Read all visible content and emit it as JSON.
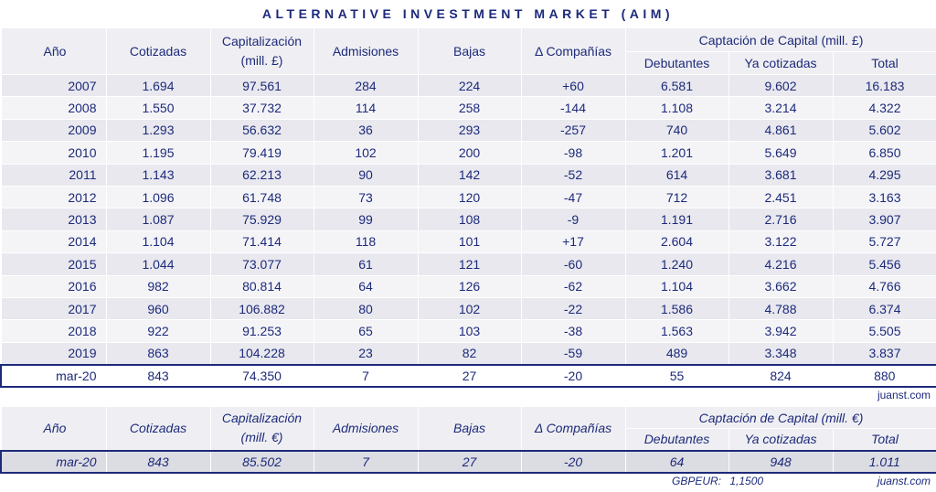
{
  "title": "ALTERNATIVE INVESTMENT MARKET (AIM)",
  "headers": {
    "year": "Año",
    "listed": "Cotizadas",
    "cap_gbp_1": "Capitalización",
    "cap_gbp_2": "(mill. £)",
    "admissions": "Admisiones",
    "delistings": "Bajas",
    "delta": "Δ Compañías",
    "raising_gbp": "Captación de Capital (mill. £)",
    "debut": "Debutantes",
    "already": "Ya cotizadas",
    "total": "Total"
  },
  "rows": [
    {
      "year": "2007",
      "listed": "1.694",
      "cap": "97.561",
      "adm": "284",
      "bajas": "224",
      "delta": "+60",
      "debut": "6.581",
      "already": "9.602",
      "total": "16.183"
    },
    {
      "year": "2008",
      "listed": "1.550",
      "cap": "37.732",
      "adm": "114",
      "bajas": "258",
      "delta": "-144",
      "debut": "1.108",
      "already": "3.214",
      "total": "4.322"
    },
    {
      "year": "2009",
      "listed": "1.293",
      "cap": "56.632",
      "adm": "36",
      "bajas": "293",
      "delta": "-257",
      "debut": "740",
      "already": "4.861",
      "total": "5.602"
    },
    {
      "year": "2010",
      "listed": "1.195",
      "cap": "79.419",
      "adm": "102",
      "bajas": "200",
      "delta": "-98",
      "debut": "1.201",
      "already": "5.649",
      "total": "6.850"
    },
    {
      "year": "2011",
      "listed": "1.143",
      "cap": "62.213",
      "adm": "90",
      "bajas": "142",
      "delta": "-52",
      "debut": "614",
      "already": "3.681",
      "total": "4.295"
    },
    {
      "year": "2012",
      "listed": "1.096",
      "cap": "61.748",
      "adm": "73",
      "bajas": "120",
      "delta": "-47",
      "debut": "712",
      "already": "2.451",
      "total": "3.163"
    },
    {
      "year": "2013",
      "listed": "1.087",
      "cap": "75.929",
      "adm": "99",
      "bajas": "108",
      "delta": "-9",
      "debut": "1.191",
      "already": "2.716",
      "total": "3.907"
    },
    {
      "year": "2014",
      "listed": "1.104",
      "cap": "71.414",
      "adm": "118",
      "bajas": "101",
      "delta": "+17",
      "debut": "2.604",
      "already": "3.122",
      "total": "5.727"
    },
    {
      "year": "2015",
      "listed": "1.044",
      "cap": "73.077",
      "adm": "61",
      "bajas": "121",
      "delta": "-60",
      "debut": "1.240",
      "already": "4.216",
      "total": "5.456"
    },
    {
      "year": "2016",
      "listed": "982",
      "cap": "80.814",
      "adm": "64",
      "bajas": "126",
      "delta": "-62",
      "debut": "1.104",
      "already": "3.662",
      "total": "4.766"
    },
    {
      "year": "2017",
      "listed": "960",
      "cap": "106.882",
      "adm": "80",
      "bajas": "102",
      "delta": "-22",
      "debut": "1.586",
      "already": "4.788",
      "total": "6.374"
    },
    {
      "year": "2018",
      "listed": "922",
      "cap": "91.253",
      "adm": "65",
      "bajas": "103",
      "delta": "-38",
      "debut": "1.563",
      "already": "3.942",
      "total": "5.505"
    },
    {
      "year": "2019",
      "listed": "863",
      "cap": "104.228",
      "adm": "23",
      "bajas": "82",
      "delta": "-59",
      "debut": "489",
      "already": "3.348",
      "total": "3.837"
    }
  ],
  "current": {
    "year": "mar-20",
    "listed": "843",
    "cap": "74.350",
    "adm": "7",
    "bajas": "27",
    "delta": "-20",
    "debut": "55",
    "already": "824",
    "total": "880"
  },
  "watermark": "juanst.com",
  "euro": {
    "headers": {
      "year": "Año",
      "listed": "Cotizadas",
      "cap_1": "Capitalización",
      "cap_2": "(mill. €)",
      "admissions": "Admisiones",
      "delistings": "Bajas",
      "delta": "Δ Compañías",
      "raising": "Captación de Capital (mill. €)",
      "debut": "Debutantes",
      "already": "Ya cotizadas",
      "total": "Total"
    },
    "row": {
      "year": "mar-20",
      "listed": "843",
      "cap": "85.502",
      "adm": "7",
      "bajas": "27",
      "delta": "-20",
      "debut": "64",
      "already": "948",
      "total": "1.011"
    }
  },
  "fx": {
    "label": "GBPEUR:",
    "value": "1,1500"
  },
  "watermark2": "juanst.com"
}
